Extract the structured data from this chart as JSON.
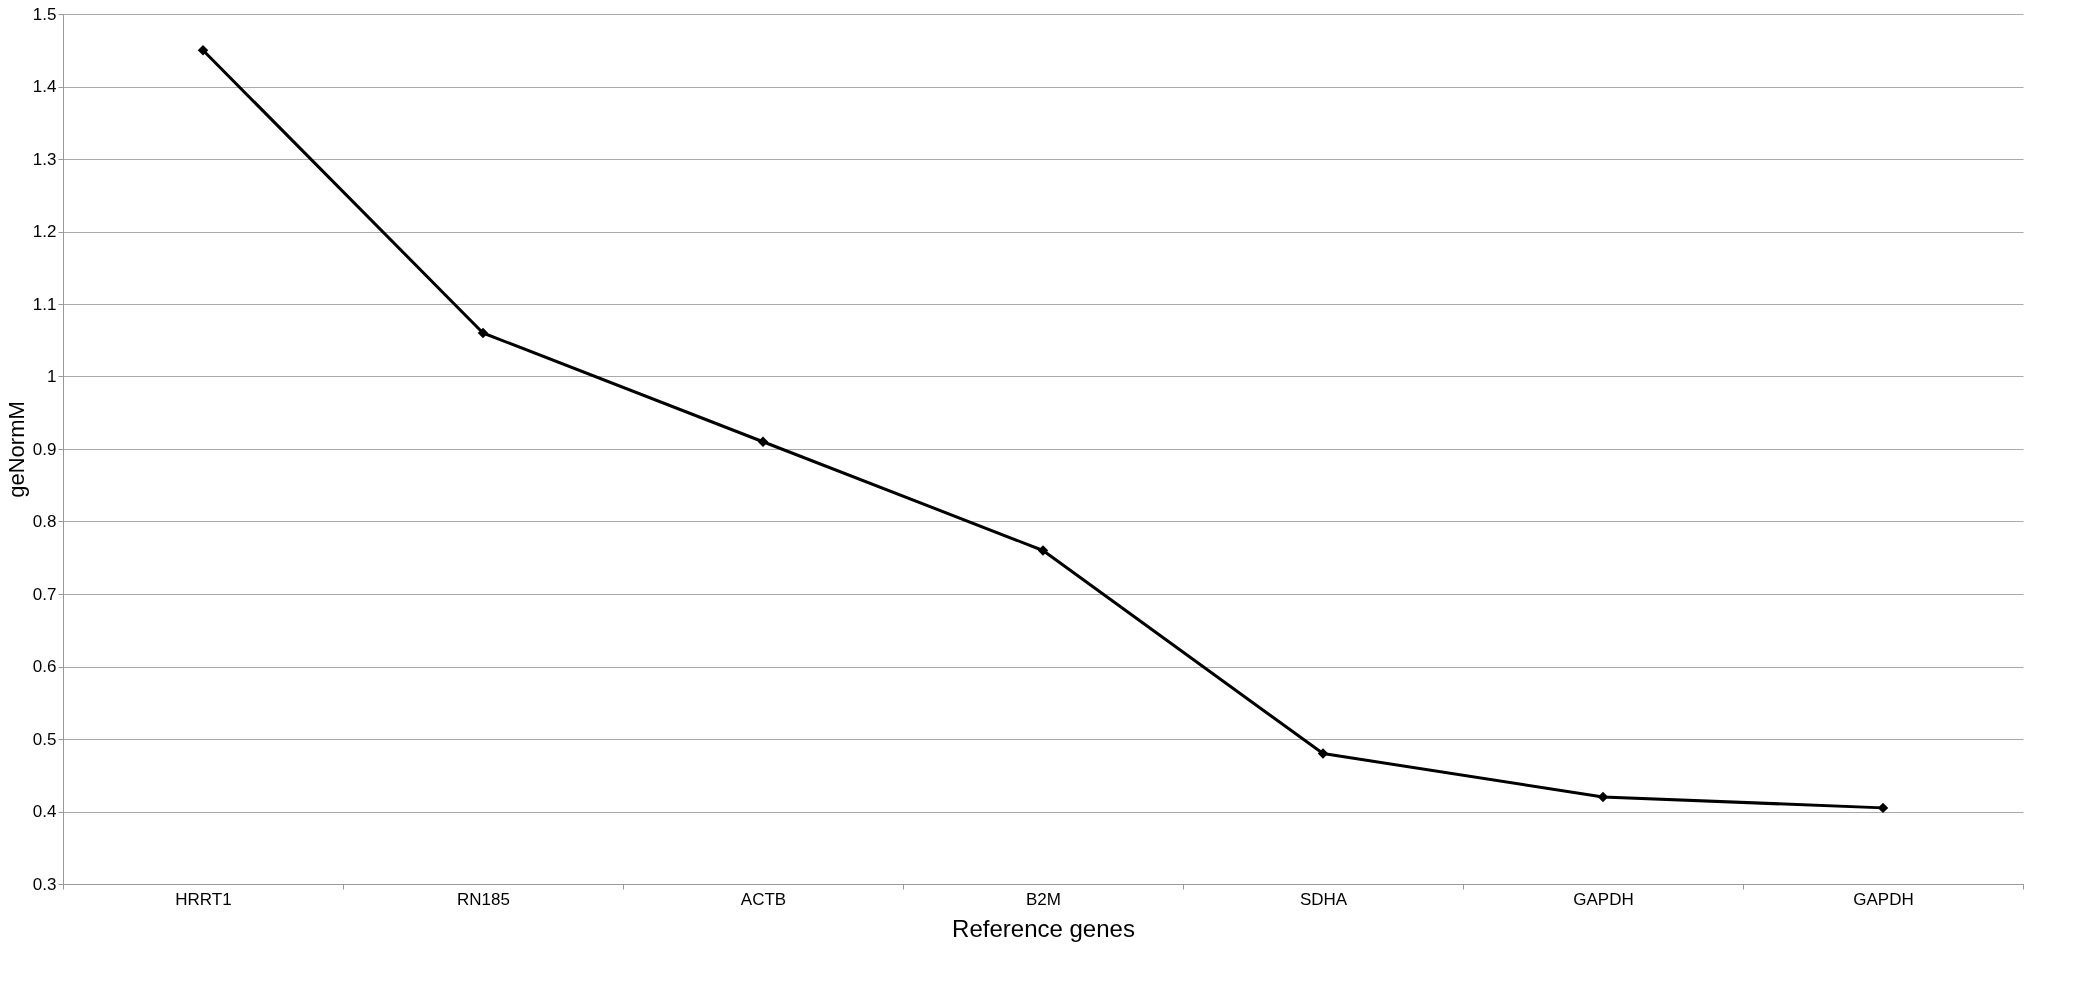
{
  "chart_data": {
    "type": "line",
    "xlabel": "Reference genes",
    "ylabel": "geNormM",
    "categories": [
      "HRRT1",
      "RN185",
      "ACTB",
      "B2M",
      "SDHA",
      "GAPDH",
      "GAPDH"
    ],
    "series": [
      {
        "color": "#000000",
        "values": [
          1.45,
          1.06,
          0.91,
          0.76,
          0.48,
          0.42,
          0.405
        ]
      }
    ],
    "ylim": [
      0.3,
      1.5
    ],
    "yticks": [
      0.3,
      0.4,
      0.5,
      0.6,
      0.7,
      0.8,
      0.9,
      1,
      1.1,
      1.2,
      1.3,
      1.4,
      1.5
    ],
    "grid": "y",
    "marker": "diamond",
    "line_style": "solid"
  }
}
